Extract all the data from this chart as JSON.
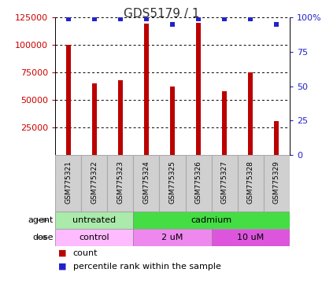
{
  "title": "GDS5179 / 1",
  "samples": [
    "GSM775321",
    "GSM775322",
    "GSM775323",
    "GSM775324",
    "GSM775325",
    "GSM775326",
    "GSM775327",
    "GSM775328",
    "GSM775329"
  ],
  "counts": [
    100000,
    65000,
    68000,
    119000,
    62000,
    120000,
    58000,
    75000,
    31000
  ],
  "percentile_ranks": [
    99,
    99,
    99,
    99,
    95,
    99,
    99,
    99,
    95
  ],
  "ylim_left": [
    0,
    125000
  ],
  "yticks_left": [
    25000,
    50000,
    75000,
    100000,
    125000
  ],
  "ylim_right": [
    0,
    100
  ],
  "yticks_right": [
    0,
    25,
    50,
    75,
    100
  ],
  "bar_color": "#bb0000",
  "dot_color": "#2222cc",
  "agent_groups": [
    {
      "label": "untreated",
      "start": 0,
      "end": 3,
      "color": "#aaeaaa"
    },
    {
      "label": "cadmium",
      "start": 3,
      "end": 9,
      "color": "#44dd44"
    }
  ],
  "dose_groups": [
    {
      "label": "control",
      "start": 0,
      "end": 3,
      "color": "#ffbbff"
    },
    {
      "label": "2 uM",
      "start": 3,
      "end": 6,
      "color": "#ee88ee"
    },
    {
      "label": "10 uM",
      "start": 6,
      "end": 9,
      "color": "#dd55dd"
    }
  ],
  "legend_count_color": "#bb0000",
  "legend_pct_color": "#2222cc",
  "title_fontsize": 11,
  "axis_label_color_left": "#cc0000",
  "axis_label_color_right": "#2222cc",
  "background_color": "#ffffff",
  "grid_color": "#000000",
  "label_box_color": "#d0d0d0",
  "label_box_edge": "#aaaaaa"
}
